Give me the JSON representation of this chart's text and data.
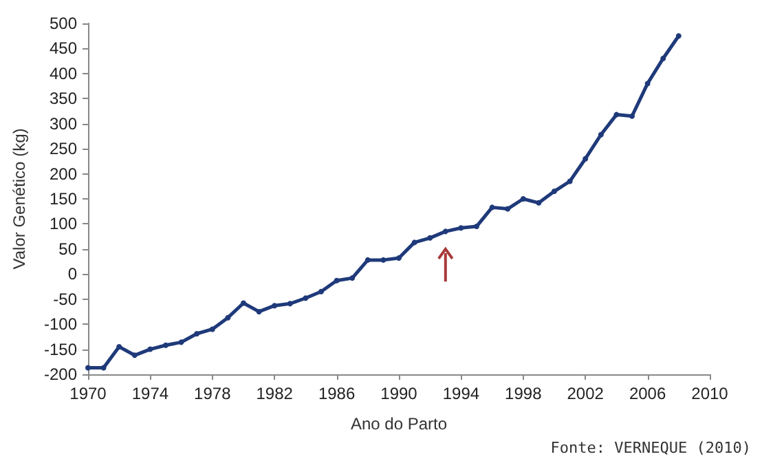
{
  "chart_data": {
    "type": "line",
    "xlabel": "Ano do Parto",
    "ylabel": "Valor Genético (kg)",
    "x": [
      1970,
      1971,
      1972,
      1973,
      1974,
      1975,
      1976,
      1977,
      1978,
      1979,
      1980,
      1981,
      1982,
      1983,
      1984,
      1985,
      1986,
      1987,
      1988,
      1989,
      1990,
      1991,
      1992,
      1993,
      1994,
      1995,
      1996,
      1997,
      1998,
      1999,
      2000,
      2001,
      2002,
      2003,
      2004,
      2005,
      2006,
      2007,
      2008
    ],
    "series": [
      {
        "color": "#1f3a7a",
        "values": [
          -187,
          -187,
          -145,
          -162,
          -150,
          -142,
          -136,
          -119,
          -110,
          -87,
          -58,
          -75,
          -63,
          -59,
          -48,
          -35,
          -13,
          -8,
          28,
          28,
          32,
          63,
          72,
          85,
          92,
          95,
          133,
          130,
          150,
          142,
          165,
          185,
          230,
          278,
          318,
          315,
          380,
          430,
          475
        ]
      }
    ],
    "xlim": [
      1970,
      2010
    ],
    "xticks": [
      1970,
      1974,
      1978,
      1982,
      1986,
      1990,
      1994,
      1998,
      2002,
      2006,
      2010
    ],
    "ylim": [
      -200,
      500
    ],
    "yticks": [
      -200,
      -150,
      -100,
      -50,
      0,
      50,
      100,
      150,
      200,
      250,
      300,
      350,
      400,
      450,
      500
    ],
    "grid": false,
    "marker": "circle",
    "line_style": "solid",
    "annotations": [
      "Fonte: VERNEQUE (2010)"
    ]
  }
}
